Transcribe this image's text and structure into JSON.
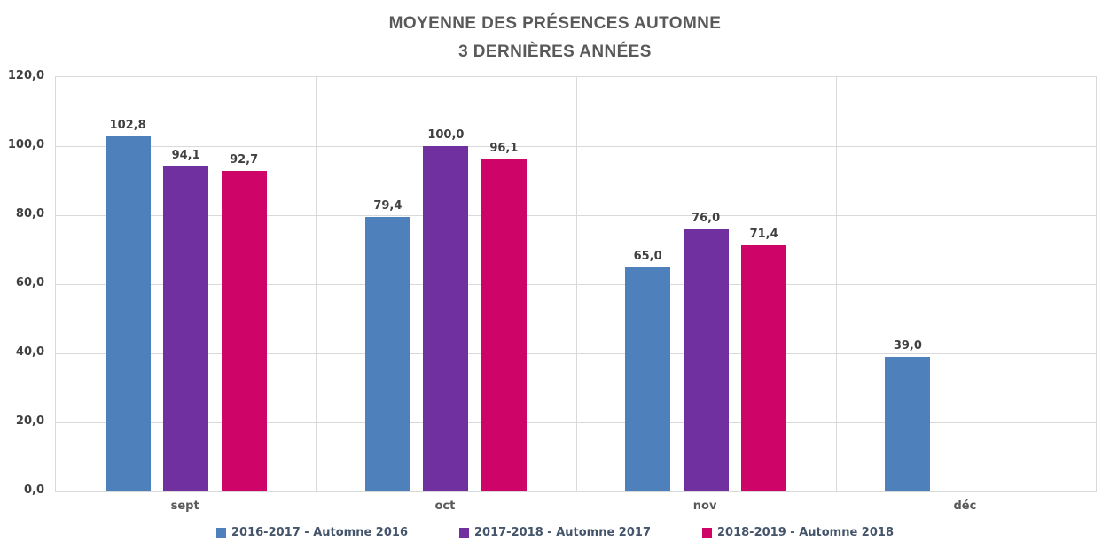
{
  "title": {
    "line1": "MOYENNE DES PRÉSENCES AUTOMNE",
    "line2": "3 DERNIÈRES ANNÉES"
  },
  "chart_data": {
    "type": "bar",
    "title": "MOYENNE DES PRÉSENCES AUTOMNE 3 DERNIÈRES ANNÉES",
    "xlabel": "",
    "ylabel": "",
    "categories": [
      "sept",
      "oct",
      "nov",
      "déc"
    ],
    "series": [
      {
        "name": "2016-2017 - Automne 2016",
        "color": "#4E80BC",
        "values": [
          102.8,
          79.4,
          65.0,
          39.0
        ],
        "labels": [
          "102,8",
          "79,4",
          "65,0",
          "39,0"
        ]
      },
      {
        "name": "2017-2018 - Automne 2017",
        "color": "#7030A0",
        "values": [
          94.1,
          100.0,
          76.0,
          null
        ],
        "labels": [
          "94,1",
          "100,0",
          "76,0",
          null
        ]
      },
      {
        "name": "2018-2019 - Automne 2018",
        "color": "#CE0468",
        "values": [
          92.7,
          96.1,
          71.4,
          null
        ],
        "labels": [
          "92,7",
          "96,1",
          "71,4",
          null
        ]
      }
    ],
    "ylim": [
      0,
      120
    ],
    "yticks": [
      "120,0",
      "100,0",
      "80,0",
      "60,0",
      "40,0",
      "20,0",
      "0,0"
    ],
    "grid": true,
    "legend_position": "bottom",
    "colors": {
      "gridline": "#D9D9D9",
      "plot_border": "#D9D9D9",
      "title_text": "#595959",
      "data_label_text": "#404040",
      "y_tick_text": "#404040",
      "x_tick_text": "#595959",
      "legend_text": "#44546A"
    }
  }
}
